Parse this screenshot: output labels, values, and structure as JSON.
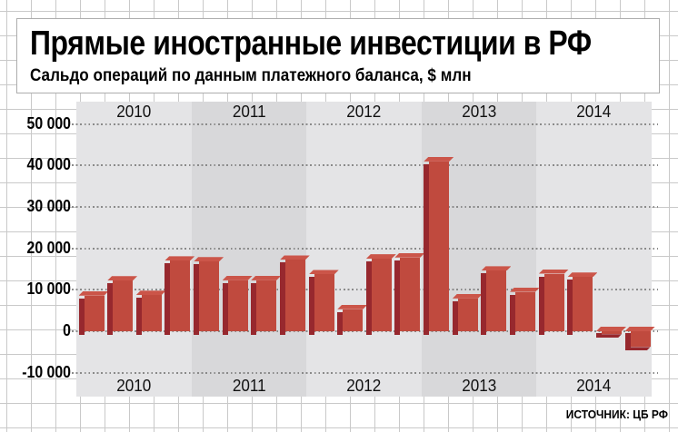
{
  "header": {
    "title": "Прямые иностранные инвестиции в РФ",
    "subtitle": "Сальдо операций по данным платежного баланса, $ млн"
  },
  "source_label": "ИСТОЧНИК: ЦБ РФ",
  "chart_data": {
    "type": "bar",
    "title": "Прямые иностранные инвестиции в РФ",
    "subtitle": "Сальдо операций по данным платежного баланса, $ млн",
    "unit": "$ млн",
    "ylim": [
      -10000,
      50000
    ],
    "ytick_step": 10000,
    "ytick_values": [
      50000,
      40000,
      30000,
      20000,
      10000,
      0,
      -10000
    ],
    "ytick_labels": [
      "50 000",
      "40 000",
      "30 000",
      "20 000",
      "10 000",
      "0",
      "-10 000"
    ],
    "grid": "horizontal dotted lines; alternating gray year bands; year labels shown above and below plot",
    "legend": "none",
    "bar_style": "pseudo-3d extruded bars",
    "years": [
      {
        "label": "2010",
        "quarter_values": [
          8600,
          12200,
          8700,
          17000
        ]
      },
      {
        "label": "2011",
        "quarter_values": [
          16800,
          12300,
          12300,
          17200
        ]
      },
      {
        "label": "2012",
        "quarter_values": [
          13700,
          5300,
          17500,
          17800
        ]
      },
      {
        "label": "2013",
        "quarter_values": [
          41000,
          7900,
          14600,
          9500
        ]
      },
      {
        "label": "2014",
        "quarter_values": [
          13900,
          13100,
          -700,
          -3800
        ]
      }
    ],
    "colors": {
      "bar_front": "#c04a3e",
      "bar_top": "#cb5549",
      "bar_side": "#97282e",
      "band_light": "#e4e4e6",
      "band_dark": "#d8d8da",
      "gridline_dots": "#8a8a8a",
      "paper_grid": "#c9c9c9"
    },
    "source": "ИСТОЧНИК: ЦБ РФ"
  }
}
